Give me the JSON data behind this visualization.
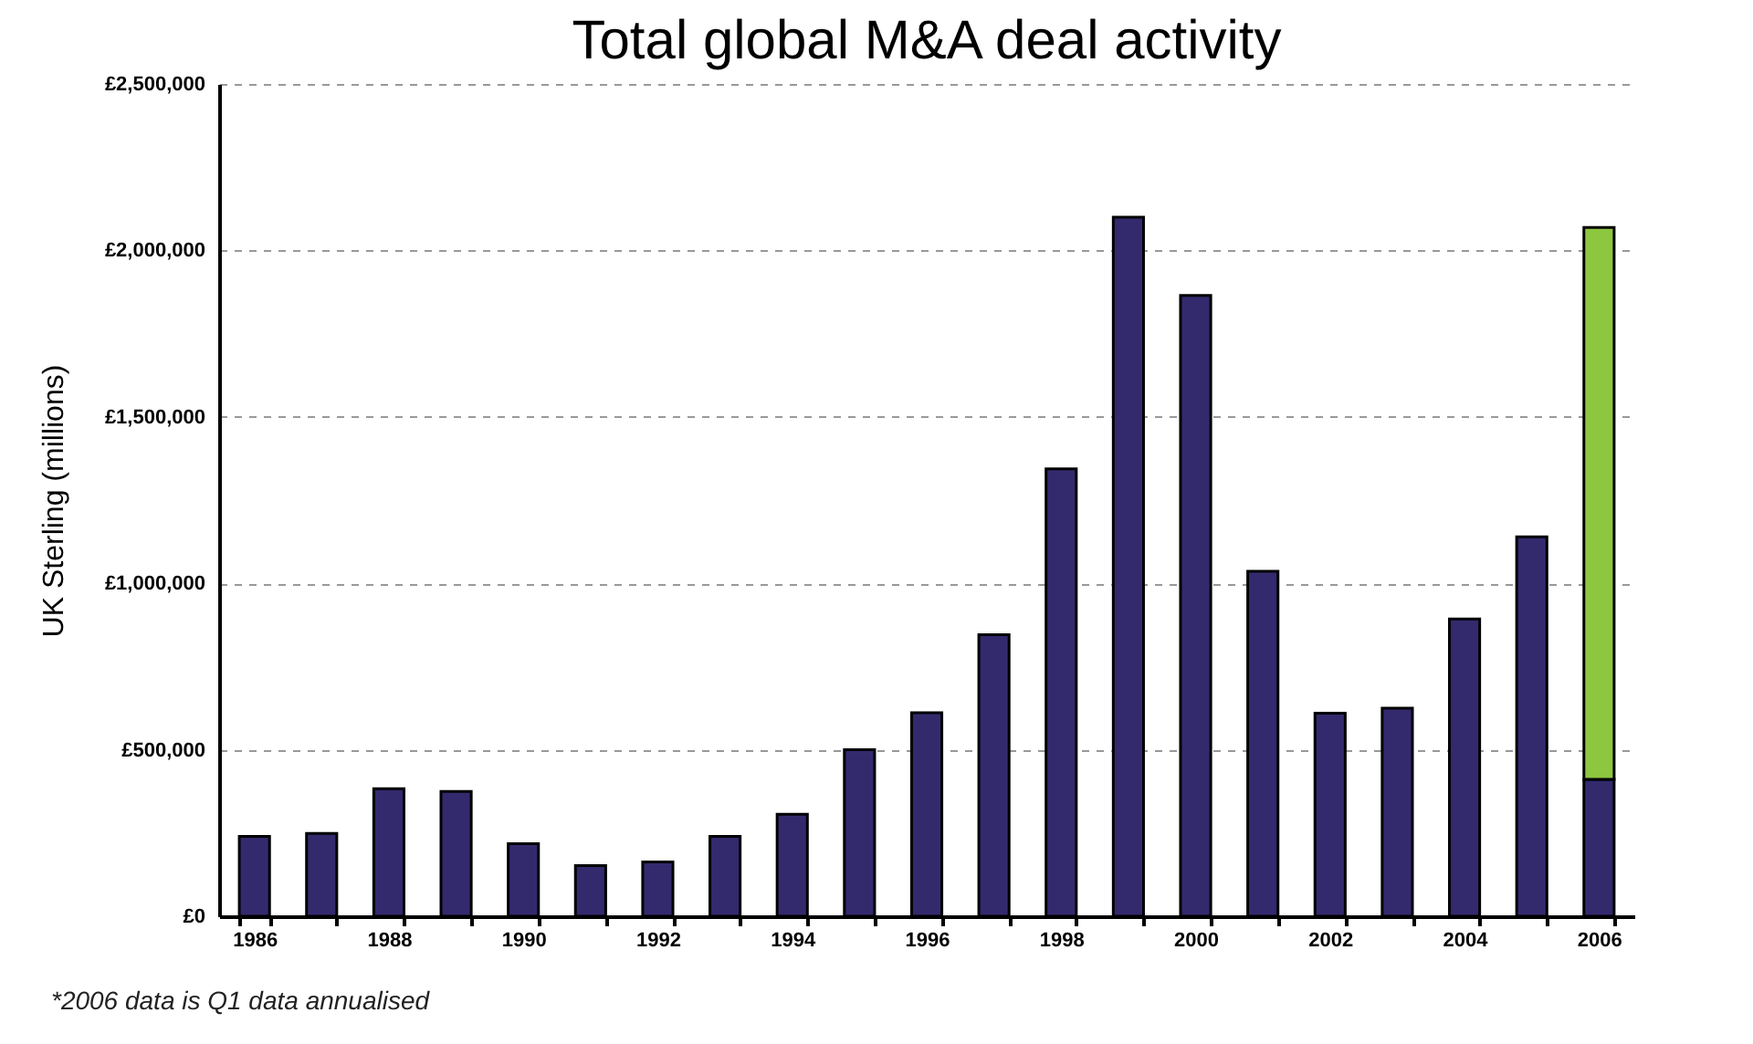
{
  "chart_data": {
    "type": "bar",
    "title": "Total global M&A deal activity",
    "ylabel": "UK Sterling (millions)",
    "categories": [
      "1986",
      null,
      "1988",
      null,
      "1990",
      null,
      "1992",
      null,
      "1994",
      null,
      "1996",
      null,
      "1998",
      null,
      "2000",
      null,
      "2002",
      null,
      "2004",
      null,
      "2006"
    ],
    "series": [
      {
        "color": "#332a6e",
        "values": [
          240000,
          249000,
          383000,
          375000,
          218000,
          152000,
          163000,
          240000,
          306000,
          500000,
          611000,
          846000,
          1344000,
          2100000,
          1865000,
          1036000,
          610000,
          625000,
          893000,
          1140000,
          411000
        ]
      },
      {
        "color": "#8dc63f",
        "values": [
          null,
          null,
          null,
          null,
          null,
          null,
          null,
          null,
          null,
          null,
          null,
          null,
          null,
          null,
          null,
          null,
          null,
          null,
          null,
          null,
          1658000
        ]
      }
    ],
    "stacked": true,
    "ylim": [
      0,
      2500000
    ],
    "yticks": [
      {
        "value": 0,
        "label": "£0"
      },
      {
        "value": 500000,
        "label": "£500,000"
      },
      {
        "value": 1000000,
        "label": "£1,000,000"
      },
      {
        "value": 1500000,
        "label": "£1,500,000"
      },
      {
        "value": 2000000,
        "label": "£2,000,000"
      },
      {
        "value": 2500000,
        "label": "£2,500,000"
      }
    ],
    "grid": "y",
    "line_style": "dashed",
    "annotations": [
      "*2006 data is Q1 data annualised"
    ]
  }
}
